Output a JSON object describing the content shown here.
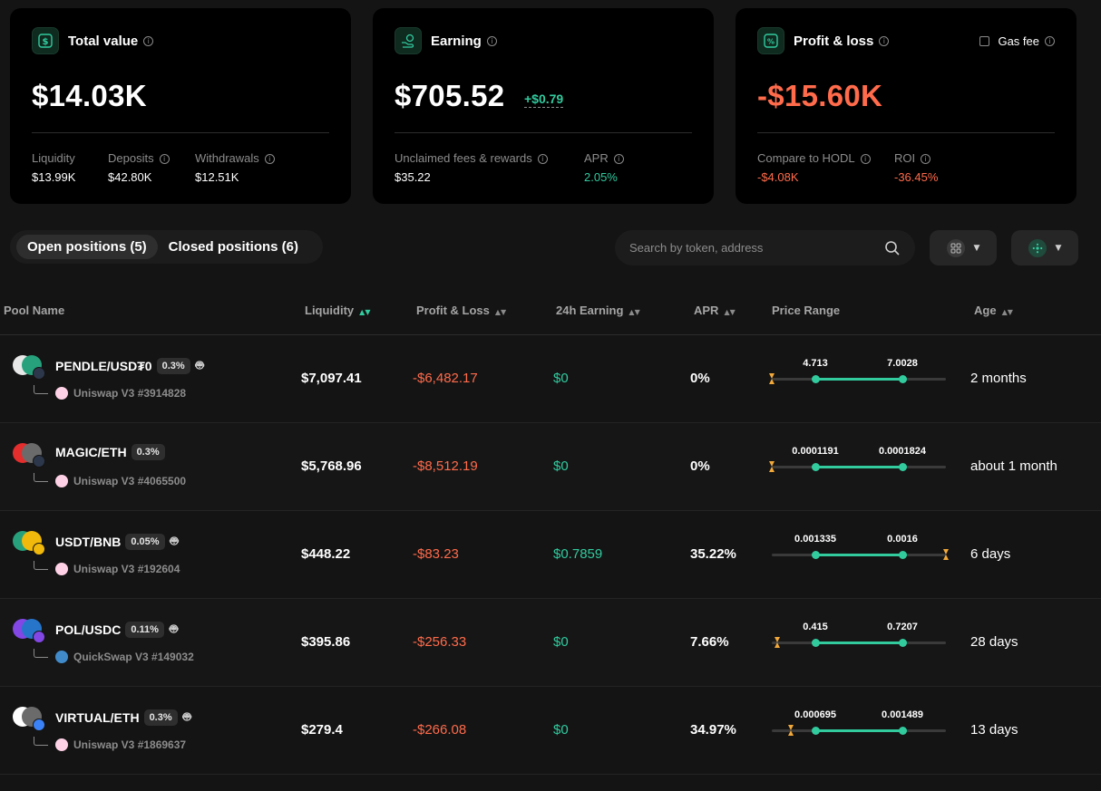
{
  "cards": {
    "total": {
      "title": "Total value",
      "value": "$14.03K",
      "stats": [
        {
          "label": "Liquidity",
          "value": "$13.99K",
          "info": false
        },
        {
          "label": "Deposits",
          "value": "$42.80K",
          "info": true
        },
        {
          "label": "Withdrawals",
          "value": "$12.51K",
          "info": true
        }
      ]
    },
    "earning": {
      "title": "Earning",
      "value": "$705.52",
      "delta": "+$0.79",
      "stats": [
        {
          "label": "Unclaimed fees & rewards",
          "value": "$35.22"
        },
        {
          "label": "APR",
          "value": "2.05%"
        }
      ]
    },
    "pnl": {
      "title": "Profit & loss",
      "value": "-$15.60K",
      "gas_fee_label": "Gas fee",
      "stats": [
        {
          "label": "Compare to HODL",
          "value": "-$4.08K"
        },
        {
          "label": "ROI",
          "value": "-36.45%"
        }
      ]
    }
  },
  "tabs": [
    {
      "label": "Open positions (5)",
      "active": true
    },
    {
      "label": "Closed positions (6)",
      "active": false
    }
  ],
  "search": {
    "placeholder": "Search by token, address"
  },
  "columns": {
    "pool": "Pool Name",
    "liquidity": "Liquidity",
    "pnl": "Profit & Loss",
    "earning": "24h Earning",
    "apr": "APR",
    "range": "Price Range",
    "age": "Age"
  },
  "positions": [
    {
      "pair": "PENDLE/USD₮0",
      "fee": "0.3%",
      "bot": true,
      "protocol": "Uniswap V3 #3914828",
      "liquidity": "$7,097.41",
      "pnl": "-$6,482.17",
      "earning": "$0",
      "apr": "0%",
      "range_min": "4.713",
      "range_max": "7.0028",
      "current_position": 0.0,
      "age": "2 months",
      "coins": [
        "#e8e8e8",
        "#26a17b"
      ],
      "chain": "#2d374b"
    },
    {
      "pair": "MAGIC/ETH",
      "fee": "0.3%",
      "bot": false,
      "protocol": "Uniswap V3 #4065500",
      "liquidity": "$5,768.96",
      "pnl": "-$8,512.19",
      "earning": "$0",
      "apr": "0%",
      "range_min": "0.0001191",
      "range_max": "0.0001824",
      "current_position": 0.0,
      "age": "about 1 month",
      "coins": [
        "#e42d2d",
        "#6b6b6b"
      ],
      "chain": "#2d374b"
    },
    {
      "pair": "USDT/BNB",
      "fee": "0.05%",
      "bot": true,
      "protocol": "Uniswap V3 #192604",
      "liquidity": "$448.22",
      "pnl": "-$83.23",
      "earning": "$0.7859",
      "apr": "35.22%",
      "range_min": "0.001335",
      "range_max": "0.0016",
      "current_position": 1.0,
      "age": "6 days",
      "coins": [
        "#26a17b",
        "#f0b90b"
      ],
      "chain": "#f0b90b"
    },
    {
      "pair": "POL/USDC",
      "fee": "0.11%",
      "bot": true,
      "protocol": "QuickSwap V3 #149032",
      "liquidity": "$395.86",
      "pnl": "-$256.33",
      "earning": "$0",
      "apr": "7.66%",
      "range_min": "0.415",
      "range_max": "0.7207",
      "current_position": 0.03,
      "age": "28 days",
      "coins": [
        "#8247e5",
        "#2775ca"
      ],
      "chain": "#8247e5"
    },
    {
      "pair": "VIRTUAL/ETH",
      "fee": "0.3%",
      "bot": true,
      "protocol": "Uniswap V3 #1869637",
      "liquidity": "$279.4",
      "pnl": "-$266.08",
      "earning": "$0",
      "apr": "34.97%",
      "range_min": "0.000695",
      "range_max": "0.001489",
      "current_position": 0.11,
      "age": "13 days",
      "coins": [
        "#ffffff",
        "#6b6b6b"
      ],
      "chain": "#3b82f6"
    }
  ],
  "colors": {
    "accent": "#31cb9e",
    "negative": "#ff6b4b",
    "uniswap": "#ff007a",
    "quickswap": "#418aca"
  }
}
